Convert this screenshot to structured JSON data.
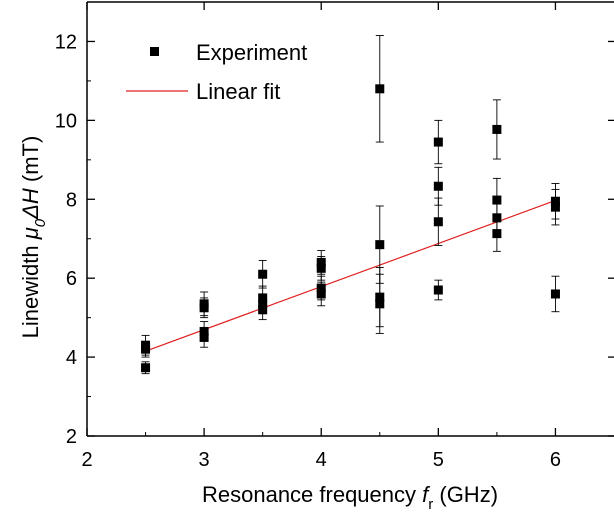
{
  "chart_data": {
    "type": "scatter",
    "xlabel": {
      "main": "Resonance frequency ",
      "symbol": "f",
      "sub": "r",
      "unit": " (GHz)"
    },
    "ylabel": {
      "main": "Linewidth ",
      "symbol": "μ",
      "sub": "0",
      "delta": "ΔH",
      "unit": " (mT)"
    },
    "xlim": [
      2,
      6.5
    ],
    "ylim": [
      2,
      13
    ],
    "xticks": [
      2,
      3,
      4,
      5,
      6
    ],
    "yticks": [
      2,
      4,
      6,
      8,
      10,
      12
    ],
    "grid": false,
    "legend_placement": "top-left",
    "series": [
      {
        "name": "Experiment",
        "marker": "square",
        "color": "#000000",
        "points": [
          {
            "x": 2.5,
            "y": 4.3,
            "err": 0.25
          },
          {
            "x": 2.5,
            "y": 4.2,
            "err": 0.2
          },
          {
            "x": 2.5,
            "y": 3.73,
            "err": 0.15
          },
          {
            "x": 3.0,
            "y": 5.35,
            "err": 0.3
          },
          {
            "x": 3.0,
            "y": 5.25,
            "err": 0.25
          },
          {
            "x": 3.0,
            "y": 4.65,
            "err": 0.25
          },
          {
            "x": 3.0,
            "y": 4.5,
            "err": 0.25
          },
          {
            "x": 3.5,
            "y": 6.1,
            "err": 0.35
          },
          {
            "x": 3.5,
            "y": 5.5,
            "err": 0.3
          },
          {
            "x": 3.5,
            "y": 5.35,
            "err": 0.25
          },
          {
            "x": 3.5,
            "y": 5.2,
            "err": 0.25
          },
          {
            "x": 4.0,
            "y": 6.4,
            "err": 0.3
          },
          {
            "x": 4.0,
            "y": 6.25,
            "err": 0.3
          },
          {
            "x": 4.0,
            "y": 5.75,
            "err": 0.3
          },
          {
            "x": 4.0,
            "y": 5.6,
            "err": 0.3
          },
          {
            "x": 4.5,
            "y": 10.8,
            "err": 1.35
          },
          {
            "x": 4.5,
            "y": 6.85,
            "err": 0.98
          },
          {
            "x": 4.5,
            "y": 5.52,
            "err": 0.75
          },
          {
            "x": 4.5,
            "y": 5.35,
            "err": 0.75
          },
          {
            "x": 5.0,
            "y": 9.45,
            "err": 0.55
          },
          {
            "x": 5.0,
            "y": 8.33,
            "err": 0.48
          },
          {
            "x": 5.0,
            "y": 7.43,
            "err": 0.6
          },
          {
            "x": 5.0,
            "y": 5.7,
            "err": 0.25
          },
          {
            "x": 5.5,
            "y": 9.77,
            "err": 0.75
          },
          {
            "x": 5.5,
            "y": 7.98,
            "err": 0.55
          },
          {
            "x": 5.5,
            "y": 7.53,
            "err": 0.5
          },
          {
            "x": 5.5,
            "y": 7.13,
            "err": 0.45
          },
          {
            "x": 6.0,
            "y": 7.95,
            "err": 0.45
          },
          {
            "x": 6.0,
            "y": 7.8,
            "err": 0.45
          },
          {
            "x": 6.0,
            "y": 5.6,
            "err": 0.45
          }
        ]
      },
      {
        "name": "Linear fit",
        "type": "line",
        "color": "#e02020",
        "x": [
          2.5,
          6.0
        ],
        "y": [
          4.15,
          7.97
        ]
      }
    ]
  }
}
